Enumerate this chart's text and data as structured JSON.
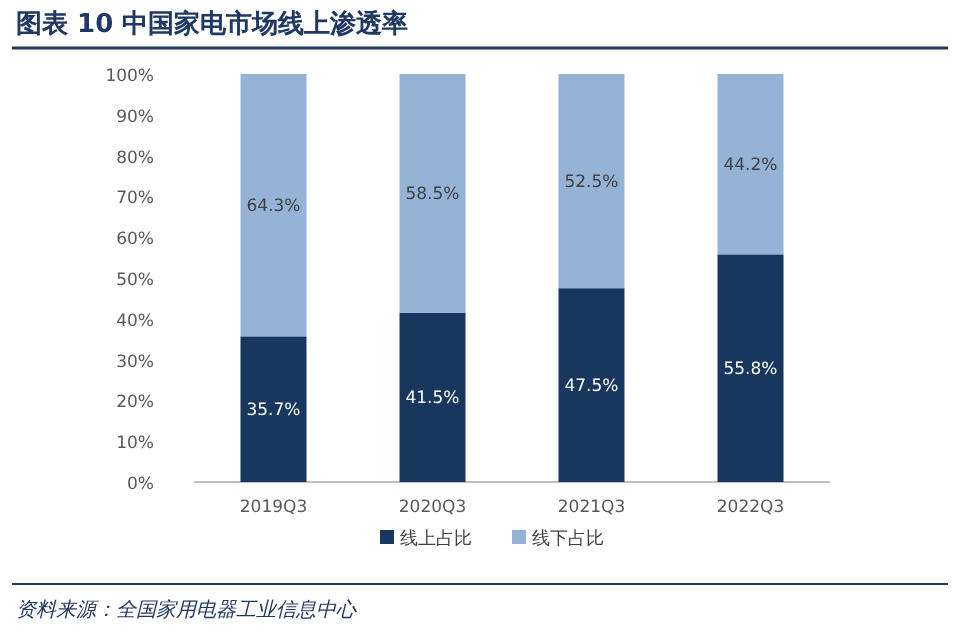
{
  "chart_data": {
    "type": "bar",
    "title": "图表 10   中国家电市场线上渗透率",
    "categories": [
      "2019Q3",
      "2020Q3",
      "2021Q3",
      "2022Q3"
    ],
    "stacked": true,
    "series": [
      {
        "name": "线上占比",
        "color": "#17375e",
        "values": [
          35.7,
          41.5,
          47.5,
          55.8
        ],
        "value_labels": [
          "35.7%",
          "41.5%",
          "47.5%",
          "55.8%"
        ]
      },
      {
        "name": "线下占比",
        "color": "#95b3d7",
        "values": [
          64.3,
          58.5,
          52.5,
          44.2
        ],
        "value_labels": [
          "64.3%",
          "58.5%",
          "52.5%",
          "44.2%"
        ]
      }
    ],
    "ylim": [
      0,
      100
    ],
    "yticks": [
      {
        "value": 0,
        "label": "0%"
      },
      {
        "value": 10,
        "label": "10%"
      },
      {
        "value": 20,
        "label": "20%"
      },
      {
        "value": 30,
        "label": "30%"
      },
      {
        "value": 40,
        "label": "40%"
      },
      {
        "value": 50,
        "label": "50%"
      },
      {
        "value": 60,
        "label": "60%"
      },
      {
        "value": 70,
        "label": "70%"
      },
      {
        "value": 80,
        "label": "80%"
      },
      {
        "value": 90,
        "label": "90%"
      },
      {
        "value": 100,
        "label": "100%"
      }
    ],
    "legend": "bottom",
    "annotations": [
      "资料来源：全国家用电器工业信息中心"
    ]
  }
}
